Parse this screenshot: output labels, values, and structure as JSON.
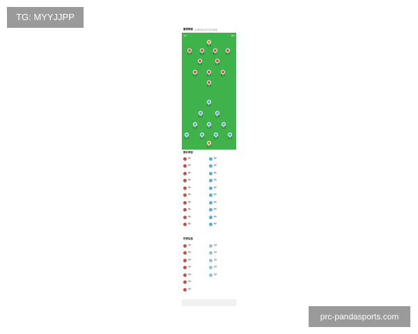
{
  "watermarks": {
    "top_left": "TG: MYYJJPP",
    "bottom_right": "prc-pandasports.com"
  },
  "header": {
    "title": "首发阵容",
    "subtitle": "比赛阵容来源于官方数据"
  },
  "pitch": {
    "home_label": "主队",
    "away_label": "客队",
    "home_color": "#c0504d",
    "away_color": "#5aaad8",
    "gk_color": "#e08a2c",
    "home": [
      {
        "r": 0,
        "x": [
          50
        ]
      },
      {
        "r": 1,
        "x": [
          14,
          37,
          62,
          85
        ]
      },
      {
        "r": 2,
        "x": [
          33,
          65
        ]
      },
      {
        "r": 3,
        "x": [
          24,
          50,
          76
        ]
      },
      {
        "r": 4,
        "x": [
          50
        ]
      }
    ],
    "away": [
      {
        "r": 0,
        "x": [
          50
        ]
      },
      {
        "r": 1,
        "x": [
          35,
          65
        ]
      },
      {
        "r": 2,
        "x": [
          24,
          50,
          77
        ]
      },
      {
        "r": 3,
        "x": [
          9,
          37,
          63,
          89
        ]
      },
      {
        "r": 4,
        "x": [
          50
        ]
      }
    ]
  },
  "subs": {
    "title": "替补阵容",
    "coach_left": "教练",
    "coach_right": "教练",
    "rows": [
      [
        "替补",
        "替补"
      ],
      [
        "替补",
        "替补"
      ],
      [
        "替补",
        "替补"
      ],
      [
        "替补",
        "替补"
      ],
      [
        "替补",
        "替补"
      ],
      [
        "替补",
        "替补"
      ],
      [
        "替补",
        "替补"
      ],
      [
        "替补",
        "替补"
      ],
      [
        "替补",
        "替补"
      ],
      [
        "替补",
        "替补"
      ]
    ]
  },
  "injuries": {
    "title": "伤停信息",
    "rows": [
      [
        "伤停",
        "伤停"
      ],
      [
        "伤停",
        "伤停"
      ],
      [
        "伤停",
        "伤停"
      ],
      [
        "伤停",
        "伤停"
      ],
      [
        "伤停",
        "伤停"
      ],
      [
        "伤停",
        ""
      ],
      [
        "伤停",
        ""
      ]
    ]
  }
}
